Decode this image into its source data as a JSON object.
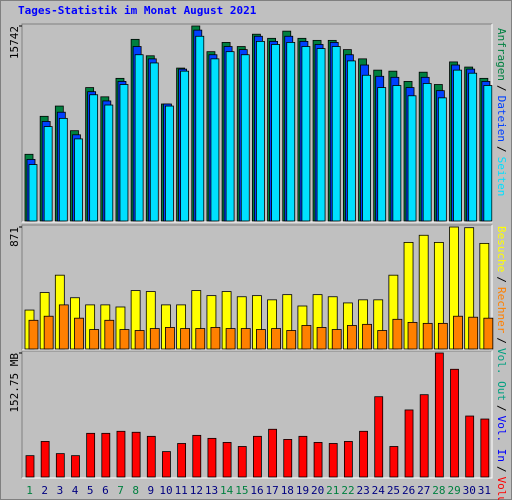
{
  "chart_data": [
    {
      "type": "bar",
      "title": "Tages-Statistik im Monat August 2021",
      "title_color": "#0000ff",
      "legend_separator": "/",
      "ylim": [
        0,
        15742
      ],
      "yticks": [
        15742
      ],
      "series": [
        {
          "name": "Anfragen",
          "color": "#008040",
          "values": [
            5385,
            8451,
            9279,
            7291,
            10771,
            10025,
            11516,
            14664,
            13339,
            9445,
            12345,
            15742,
            13670,
            14416,
            14085,
            15079,
            14747,
            15327,
            14747,
            14582,
            14582,
            13836,
            13090,
            12179,
            12096,
            11268,
            12013,
            11019,
            12842,
            12427,
            11516
          ]
        },
        {
          "name": "Dateien",
          "color": "#0040ff",
          "values": [
            4971,
            8036,
            8782,
            6959,
            10439,
            9693,
            11268,
            14085,
            13090,
            9445,
            12262,
            15410,
            13422,
            14085,
            13836,
            14913,
            14499,
            14913,
            14499,
            14250,
            14416,
            13422,
            12593,
            11682,
            11599,
            10771,
            11599,
            10522,
            12593,
            12262,
            11268
          ]
        },
        {
          "name": "Seiten",
          "color": "#00e0ff",
          "values": [
            4557,
            7622,
            8285,
            6628,
            10191,
            9362,
            11019,
            13422,
            12759,
            9279,
            12096,
            14913,
            13090,
            13670,
            13422,
            14499,
            14250,
            14416,
            14085,
            13919,
            14085,
            12925,
            11765,
            10771,
            10936,
            10108,
            11102,
            9942,
            12179,
            11930,
            10936
          ]
        }
      ]
    },
    {
      "type": "bar",
      "ylim": [
        0,
        871
      ],
      "yticks": [
        871
      ],
      "series": [
        {
          "name": "Besuche",
          "color": "#ffff00",
          "values": [
            278,
            403,
            527,
            366,
            315,
            315,
            300,
            417,
            410,
            315,
            315,
            417,
            381,
            410,
            373,
            381,
            351,
            388,
            307,
            388,
            373,
            329,
            351,
            351,
            527,
            761,
            812,
            761,
            871,
            866,
            754
          ]
        },
        {
          "name": "Rechner",
          "color": "#ff8000",
          "values": [
            205,
            234,
            315,
            220,
            139,
            205,
            139,
            132,
            146,
            154,
            146,
            146,
            154,
            146,
            146,
            139,
            146,
            132,
            168,
            154,
            139,
            168,
            176,
            132,
            212,
            190,
            183,
            183,
            234,
            227,
            220
          ]
        }
      ]
    },
    {
      "type": "bar",
      "ylim": [
        0,
        152.75
      ],
      "yticks": [
        {
          "value": 152.75,
          "label": "152.75 MB"
        }
      ],
      "categories": [
        "1",
        "2",
        "3",
        "4",
        "5",
        "6",
        "7",
        "8",
        "9",
        "10",
        "11",
        "12",
        "13",
        "14",
        "15",
        "16",
        "17",
        "18",
        "19",
        "20",
        "21",
        "22",
        "23",
        "24",
        "25",
        "26",
        "27",
        "28",
        "29",
        "30",
        "31"
      ],
      "category_colors": [
        "#008040",
        "#000080",
        "#000080",
        "#000080",
        "#000080",
        "#000080",
        "#008040",
        "#008040",
        "#000080",
        "#000080",
        "#000080",
        "#000080",
        "#000080",
        "#008040",
        "#008040",
        "#000080",
        "#000080",
        "#000080",
        "#000080",
        "#000080",
        "#008040",
        "#008040",
        "#000080",
        "#000080",
        "#000080",
        "#000080",
        "#000080",
        "#008040",
        "#008040",
        "#000080",
        "#000080"
      ],
      "series": [
        {
          "name": "Volumen",
          "color": "#ff0000",
          "values": [
            26.3,
            43.8,
            28.8,
            26.3,
            53.8,
            53.8,
            56.3,
            55.1,
            50.1,
            31.3,
            41.3,
            51.3,
            47.6,
            42.6,
            37.6,
            50.1,
            58.8,
            46.3,
            50.1,
            42.6,
            41.3,
            43.8,
            56.3,
            98.9,
            37.6,
            82.6,
            101.4,
            152.75,
            132.7,
            75.1,
            71.4
          ]
        },
        {
          "name": "Vol. In",
          "color": "#0000ff"
        },
        {
          "name": "Vol. Out",
          "color": "#00a080"
        }
      ]
    }
  ]
}
